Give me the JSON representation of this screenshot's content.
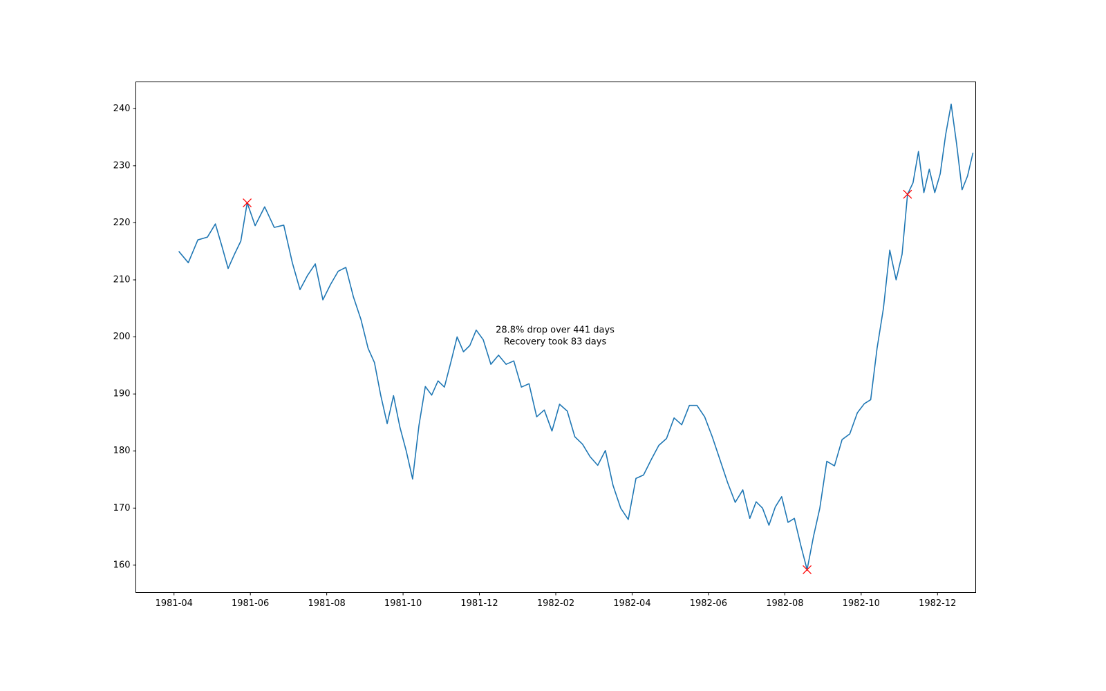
{
  "chart_data": {
    "type": "line",
    "annotation": [
      "28.8% drop over 441 days",
      "Recovery took 83 days"
    ],
    "color": "#1f77b4",
    "x": [
      "1981-04",
      "1981-04",
      "1981-04",
      "1981-04",
      "1981-05",
      "1981-05",
      "1981-05",
      "1981-05",
      "1981-05",
      "1981-05",
      "1981-06",
      "1981-06",
      "1981-06",
      "1981-06",
      "1981-07",
      "1981-07",
      "1981-07",
      "1981-07",
      "1981-07",
      "1981-08",
      "1981-08",
      "1981-08",
      "1981-08",
      "1981-08",
      "1981-09",
      "1981-09",
      "1981-09",
      "1981-09",
      "1981-09",
      "1981-09",
      "1981-10",
      "1981-10",
      "1981-10",
      "1981-10",
      "1981-10",
      "1981-10",
      "1981-11",
      "1981-11",
      "1981-11",
      "1981-11",
      "1981-11",
      "1981-11",
      "1981-12",
      "1981-12",
      "1981-12",
      "1981-12",
      "1981-12",
      "1982-01",
      "1982-01",
      "1982-01",
      "1982-01",
      "1982-01",
      "1982-02",
      "1982-02",
      "1982-02",
      "1982-02",
      "1982-02",
      "1982-03",
      "1982-03",
      "1982-03",
      "1982-03",
      "1982-03",
      "1982-04",
      "1982-04",
      "1982-04",
      "1982-04",
      "1982-04",
      "1982-05",
      "1982-05",
      "1982-05",
      "1982-05",
      "1982-05",
      "1982-06",
      "1982-06",
      "1982-06",
      "1982-06",
      "1982-06",
      "1982-07",
      "1982-07",
      "1982-07",
      "1982-07",
      "1982-07",
      "1982-07",
      "1982-08",
      "1982-08",
      "1982-08",
      "1982-08",
      "1982-08",
      "1982-08",
      "1982-09",
      "1982-09",
      "1982-09",
      "1982-09",
      "1982-09",
      "1982-10",
      "1982-10",
      "1982-10",
      "1982-10",
      "1982-10",
      "1982-10",
      "1982-11",
      "1982-11",
      "1982-11",
      "1982-11",
      "1982-11",
      "1982-11",
      "1982-11",
      "1982-12",
      "1982-12",
      "1982-12",
      "1982-12",
      "1982-12",
      "1982-12",
      "1982-12"
    ],
    "values": [
      215,
      213,
      217,
      217.5,
      219.8,
      216,
      212,
      214.5,
      216.8,
      223.5,
      219.5,
      222.8,
      219.2,
      219.6,
      213,
      208.3,
      210.8,
      212.8,
      206.5,
      209.2,
      211.5,
      212.2,
      207,
      203,
      198,
      195.5,
      189.7,
      184.8,
      189.7,
      184.2,
      180,
      175.1,
      184.5,
      191.3,
      189.8,
      192.3,
      191.2,
      195.5,
      200,
      197.4,
      198.5,
      201.2,
      199.5,
      195.2,
      196.8,
      195.2,
      195.8,
      191.2,
      191.8,
      186,
      187.2,
      183.5,
      188.2,
      187,
      182.5,
      181.2,
      179,
      177.5,
      180.1,
      174,
      170,
      168,
      175.2,
      175.8,
      178.5,
      181,
      182.2,
      185.8,
      184.6,
      188,
      188,
      186,
      182.5,
      178.5,
      174.5,
      171,
      173.2,
      168.2,
      171.1,
      170,
      167,
      170.2,
      172,
      167.5,
      168.2,
      163.5,
      159.2,
      165,
      170,
      178.2,
      177.4,
      182,
      183,
      186.7,
      188.3,
      189,
      198,
      205,
      215.2,
      210,
      214.5,
      225,
      227,
      232.5,
      225.3,
      229.4,
      225.3,
      228.6,
      235.5,
      240.8,
      233.8,
      225.8,
      228.2,
      232.3
    ],
    "markers": {
      "type": "scatter",
      "color": "#ff0000",
      "x": [
        "1981-05",
        "1982-08",
        "1982-11"
      ],
      "values": [
        223.5,
        159.2,
        225
      ]
    },
    "xlim": [
      "1981-03",
      "1983-01"
    ],
    "xticks": [
      "1981-04",
      "1981-06",
      "1981-08",
      "1981-10",
      "1981-12",
      "1982-02",
      "1982-04",
      "1982-06",
      "1982-08",
      "1982-10",
      "1982-12"
    ],
    "ylim": [
      155.2,
      244.7
    ],
    "yticks": [
      160,
      170,
      180,
      190,
      200,
      210,
      220,
      230,
      240
    ]
  }
}
